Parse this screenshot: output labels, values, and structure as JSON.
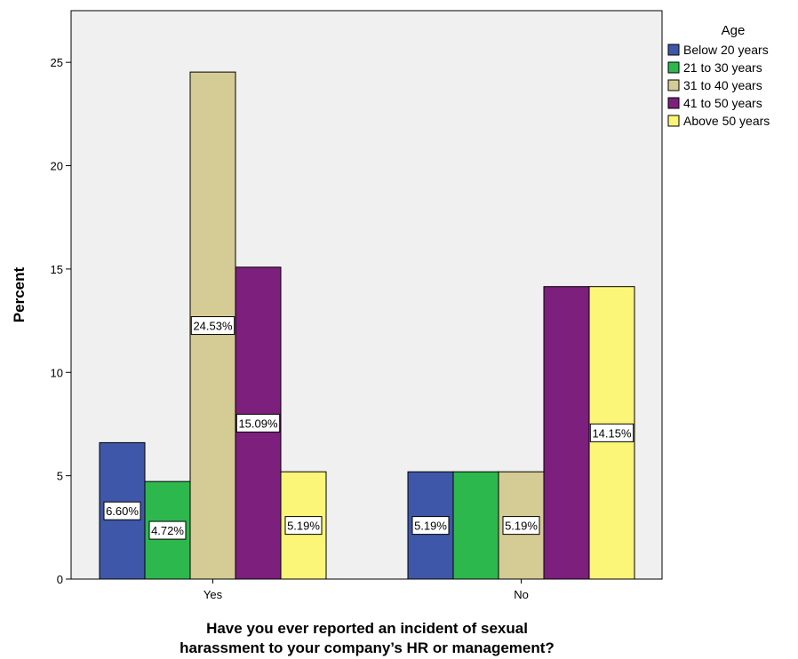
{
  "chart_data": {
    "type": "bar",
    "xlabel_lines": [
      "Have you ever reported an incident of sexual",
      "harassment to your company’s  HR or management?"
    ],
    "ylabel": "Percent",
    "ylim": [
      0,
      27.5
    ],
    "yticks": [
      0,
      5,
      10,
      15,
      20,
      25
    ],
    "categories": [
      "Yes",
      "No"
    ],
    "legend_title": "Age",
    "legend_position": "top-right",
    "series": [
      {
        "name": "Below 20 years",
        "color": "#3f57a8",
        "values": [
          6.6,
          5.19
        ],
        "labels": [
          "6.60%",
          "5.19%"
        ]
      },
      {
        "name": "21 to 30 years",
        "color": "#2db84d",
        "values": [
          4.72,
          5.19
        ],
        "labels": [
          "4.72%",
          ""
        ]
      },
      {
        "name": "31 to 40 years",
        "color": "#d4cc94",
        "values": [
          24.53,
          5.19
        ],
        "labels": [
          "24.53%",
          "5.19%"
        ]
      },
      {
        "name": "41 to 50 years",
        "color": "#7d1f7c",
        "values": [
          15.09,
          14.15
        ],
        "labels": [
          "15.09%",
          ""
        ]
      },
      {
        "name": "Above 50 years",
        "color": "#fbf578",
        "values": [
          5.19,
          14.15
        ],
        "labels": [
          "5.19%",
          "14.15%"
        ]
      }
    ]
  }
}
